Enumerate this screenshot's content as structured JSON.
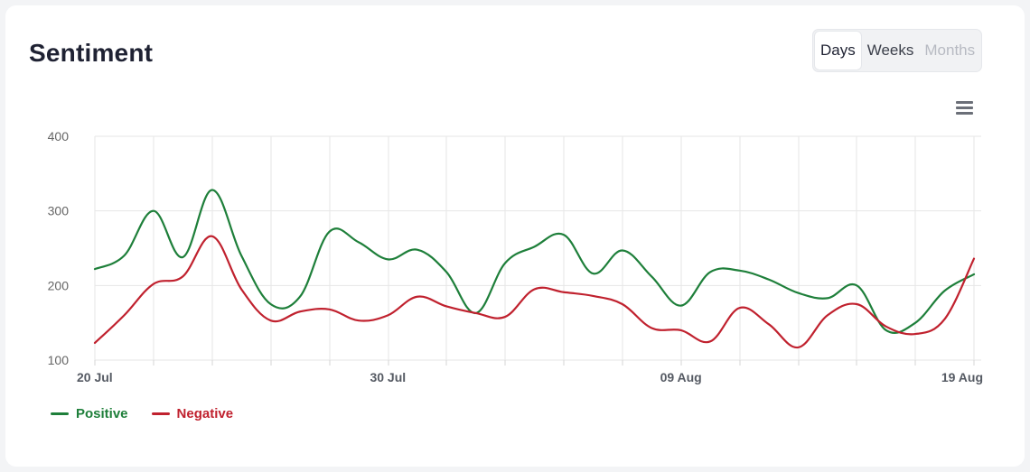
{
  "card": {
    "title": "Sentiment"
  },
  "range_selector": {
    "options": [
      {
        "label": "Days",
        "state": "active"
      },
      {
        "label": "Weeks",
        "state": "normal"
      },
      {
        "label": "Months",
        "state": "disabled"
      }
    ]
  },
  "menu_icon": "hamburger-menu-icon",
  "colors": {
    "positive": "#1e7f3a",
    "negative": "#c0212e",
    "grid": "#e6e6e6",
    "axis_text": "#666666"
  },
  "chart_data": {
    "type": "line",
    "title": "Sentiment",
    "xlabel": "",
    "ylabel": "",
    "ylim": [
      100,
      400
    ],
    "yticks": [
      "100",
      "200",
      "300",
      "400"
    ],
    "x": [
      "20 Jul",
      "21 Jul",
      "22 Jul",
      "23 Jul",
      "24 Jul",
      "25 Jul",
      "26 Jul",
      "27 Jul",
      "28 Jul",
      "29 Jul",
      "30 Jul",
      "31 Jul",
      "01 Aug",
      "02 Aug",
      "03 Aug",
      "04 Aug",
      "05 Aug",
      "06 Aug",
      "07 Aug",
      "08 Aug",
      "09 Aug",
      "10 Aug",
      "11 Aug",
      "12 Aug",
      "13 Aug",
      "14 Aug",
      "15 Aug",
      "16 Aug",
      "17 Aug",
      "18 Aug",
      "19 Aug"
    ],
    "xticks": [
      "20 Jul",
      "30 Jul",
      "09 Aug",
      "19 Aug"
    ],
    "series": [
      {
        "name": "Positive",
        "values": [
          222,
          240,
          300,
          238,
          328,
          240,
          175,
          185,
          272,
          258,
          235,
          248,
          218,
          163,
          230,
          252,
          268,
          216,
          247,
          212,
          173,
          218,
          220,
          208,
          190,
          183,
          200,
          140,
          150,
          193,
          215
        ]
      },
      {
        "name": "Negative",
        "values": [
          123,
          160,
          202,
          212,
          266,
          195,
          153,
          165,
          168,
          153,
          160,
          185,
          172,
          163,
          158,
          195,
          191,
          186,
          175,
          143,
          140,
          125,
          170,
          148,
          117,
          160,
          175,
          145,
          135,
          155,
          236
        ]
      }
    ],
    "grid": true,
    "legend_position": "bottom-left"
  }
}
